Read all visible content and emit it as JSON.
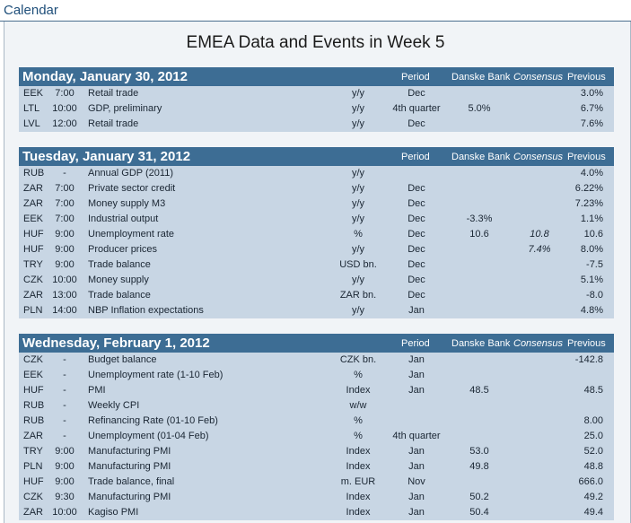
{
  "window": {
    "title": "Calendar"
  },
  "document": {
    "title": "EMEA Data and Events in Week 5"
  },
  "columns": {
    "period": "Period",
    "danske": "Danske Bank",
    "consensus": "Consensus",
    "previous": "Previous"
  },
  "colors": {
    "header_bg": "#3d6d94",
    "section_bg": "#c8d6e4",
    "title_color": "#1f4f7a"
  },
  "sections": [
    {
      "date": "Monday, January 30, 2012",
      "rows": [
        {
          "country": "EEK",
          "time": "7:00",
          "event": "Retail trade",
          "unit": "y/y",
          "period": "Dec",
          "danske": "",
          "consensus": "",
          "previous": "3.0%"
        },
        {
          "country": "LTL",
          "time": "10:00",
          "event": "GDP, preliminary",
          "unit": "y/y",
          "period": "4th quarter",
          "danske": "5.0%",
          "consensus": "",
          "previous": "6.7%"
        },
        {
          "country": "LVL",
          "time": "12:00",
          "event": "Retail trade",
          "unit": "y/y",
          "period": "Dec",
          "danske": "",
          "consensus": "",
          "previous": "7.6%"
        }
      ]
    },
    {
      "date": "Tuesday, January 31, 2012",
      "rows": [
        {
          "country": "RUB",
          "time": "-",
          "event": "Annual GDP (2011)",
          "unit": "y/y",
          "period": "",
          "danske": "",
          "consensus": "",
          "previous": "4.0%"
        },
        {
          "country": "ZAR",
          "time": "7:00",
          "event": "Private sector credit",
          "unit": "y/y",
          "period": "Dec",
          "danske": "",
          "consensus": "",
          "previous": "6.22%"
        },
        {
          "country": "ZAR",
          "time": "7:00",
          "event": "Money supply M3",
          "unit": "y/y",
          "period": "Dec",
          "danske": "",
          "consensus": "",
          "previous": "7.23%"
        },
        {
          "country": "EEK",
          "time": "7:00",
          "event": "Industrial output",
          "unit": "y/y",
          "period": "Dec",
          "danske": "-3.3%",
          "consensus": "",
          "previous": "1.1%"
        },
        {
          "country": "HUF",
          "time": "9:00",
          "event": "Unemployment rate",
          "unit": "%",
          "period": "Dec",
          "danske": "10.6",
          "consensus": "10.8",
          "previous": "10.6"
        },
        {
          "country": "HUF",
          "time": "9:00",
          "event": "Producer prices",
          "unit": "y/y",
          "period": "Dec",
          "danske": "",
          "consensus": "7.4%",
          "previous": "8.0%"
        },
        {
          "country": "TRY",
          "time": "9:00",
          "event": "Trade balance",
          "unit": "USD bn.",
          "period": "Dec",
          "danske": "",
          "consensus": "",
          "previous": "-7.5"
        },
        {
          "country": "CZK",
          "time": "10:00",
          "event": "Money supply",
          "unit": "y/y",
          "period": "Dec",
          "danske": "",
          "consensus": "",
          "previous": "5.1%"
        },
        {
          "country": "ZAR",
          "time": "13:00",
          "event": "Trade balance",
          "unit": "ZAR bn.",
          "period": "Dec",
          "danske": "",
          "consensus": "",
          "previous": "-8.0"
        },
        {
          "country": "PLN",
          "time": "14:00",
          "event": "NBP Inflation expectations",
          "unit": "y/y",
          "period": "Jan",
          "danske": "",
          "consensus": "",
          "previous": "4.8%"
        }
      ]
    },
    {
      "date": "Wednesday, February 1, 2012",
      "rows": [
        {
          "country": "CZK",
          "time": "-",
          "event": "Budget balance",
          "unit": "CZK bn.",
          "period": "Jan",
          "danske": "",
          "consensus": "",
          "previous": "-142.8"
        },
        {
          "country": "EEK",
          "time": "-",
          "event": "Unemployment rate (1-10 Feb)",
          "unit": "%",
          "period": "Jan",
          "danske": "",
          "consensus": "",
          "previous": ""
        },
        {
          "country": "HUF",
          "time": "-",
          "event": "PMI",
          "unit": "Index",
          "period": "Jan",
          "danske": "48.5",
          "consensus": "",
          "previous": "48.5"
        },
        {
          "country": "RUB",
          "time": "-",
          "event": "Weekly CPI",
          "unit": "w/w",
          "period": "",
          "danske": "",
          "consensus": "",
          "previous": ""
        },
        {
          "country": "RUB",
          "time": "-",
          "event": "Refinancing Rate (01-10 Feb)",
          "unit": "%",
          "period": "",
          "danske": "",
          "consensus": "",
          "previous": "8.00"
        },
        {
          "country": "ZAR",
          "time": "-",
          "event": "Unemployment (01-04 Feb)",
          "unit": "%",
          "period": "4th quarter",
          "danske": "",
          "consensus": "",
          "previous": "25.0"
        },
        {
          "country": "TRY",
          "time": "9:00",
          "event": "Manufacturing PMI",
          "unit": "Index",
          "period": "Jan",
          "danske": "53.0",
          "consensus": "",
          "previous": "52.0"
        },
        {
          "country": "PLN",
          "time": "9:00",
          "event": "Manufacturing PMI",
          "unit": "Index",
          "period": "Jan",
          "danske": "49.8",
          "consensus": "",
          "previous": "48.8"
        },
        {
          "country": "HUF",
          "time": "9:00",
          "event": "Trade balance, final",
          "unit": "m. EUR",
          "period": "Nov",
          "danske": "",
          "consensus": "",
          "previous": "666.0"
        },
        {
          "country": "CZK",
          "time": "9:30",
          "event": "Manufacturing PMI",
          "unit": "Index",
          "period": "Jan",
          "danske": "50.2",
          "consensus": "",
          "previous": "49.2"
        },
        {
          "country": "ZAR",
          "time": "10:00",
          "event": "Kagiso PMI",
          "unit": "Index",
          "period": "Jan",
          "danske": "50.4",
          "consensus": "",
          "previous": "49.4"
        }
      ]
    }
  ]
}
